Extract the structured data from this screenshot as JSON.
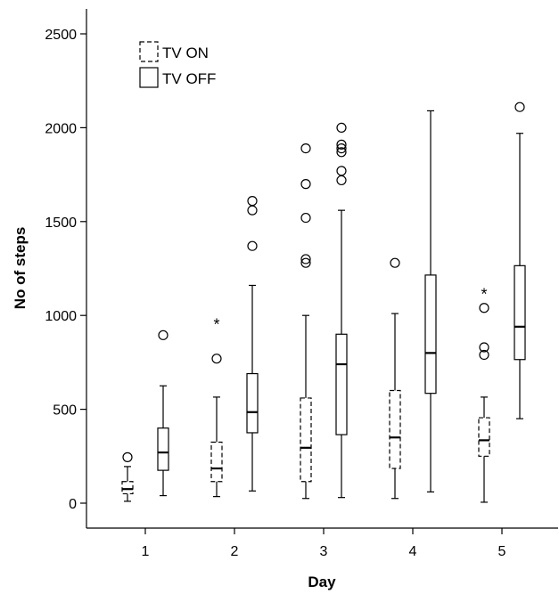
{
  "chart_data": {
    "type": "boxplot",
    "xlabel": "Day",
    "ylabel": "No of steps",
    "categories": [
      "1",
      "2",
      "3",
      "4",
      "5"
    ],
    "ylim": [
      -150,
      2550
    ],
    "yticks": [
      "0",
      "500",
      "1000",
      "1500",
      "2000",
      "2500"
    ],
    "legend": {
      "placement": "top-left"
    },
    "series": [
      {
        "name": "TV ON",
        "style": "dashed",
        "boxes": [
          {
            "day": "1",
            "min": 10,
            "q1": 50,
            "median": 75,
            "q3": 115,
            "max": 195,
            "outliers": [
              245
            ],
            "extremes": []
          },
          {
            "day": "2",
            "min": 35,
            "q1": 115,
            "median": 185,
            "q3": 325,
            "max": 565,
            "outliers": [
              770
            ],
            "extremes": [
              980
            ]
          },
          {
            "day": "3",
            "min": 25,
            "q1": 115,
            "median": 295,
            "q3": 560,
            "max": 1000,
            "outliers": [
              1280,
              1300,
              1520,
              1700,
              1890
            ],
            "extremes": []
          },
          {
            "day": "4",
            "min": 25,
            "q1": 185,
            "median": 350,
            "q3": 600,
            "max": 1010,
            "outliers": [
              1280
            ],
            "extremes": []
          },
          {
            "day": "5",
            "min": 5,
            "q1": 250,
            "median": 335,
            "q3": 455,
            "max": 565,
            "outliers": [
              790,
              830,
              1040
            ],
            "extremes": [
              1140
            ]
          }
        ]
      },
      {
        "name": "TV OFF",
        "style": "solid",
        "boxes": [
          {
            "day": "1",
            "min": 40,
            "q1": 175,
            "median": 270,
            "q3": 400,
            "max": 625,
            "outliers": [
              895
            ],
            "extremes": []
          },
          {
            "day": "2",
            "min": 65,
            "q1": 375,
            "median": 485,
            "q3": 690,
            "max": 1160,
            "outliers": [
              1370,
              1560,
              1610
            ],
            "extremes": []
          },
          {
            "day": "3",
            "min": 30,
            "q1": 365,
            "median": 740,
            "q3": 900,
            "max": 1560,
            "outliers": [
              1720,
              1770,
              1870,
              1890,
              1910,
              2000
            ],
            "extremes": []
          },
          {
            "day": "4",
            "min": 60,
            "q1": 585,
            "median": 800,
            "q3": 1215,
            "max": 2090,
            "outliers": [],
            "extremes": []
          },
          {
            "day": "5",
            "min": 450,
            "q1": 765,
            "median": 940,
            "q3": 1265,
            "max": 1970,
            "outliers": [
              2110
            ],
            "extremes": []
          }
        ]
      }
    ]
  }
}
